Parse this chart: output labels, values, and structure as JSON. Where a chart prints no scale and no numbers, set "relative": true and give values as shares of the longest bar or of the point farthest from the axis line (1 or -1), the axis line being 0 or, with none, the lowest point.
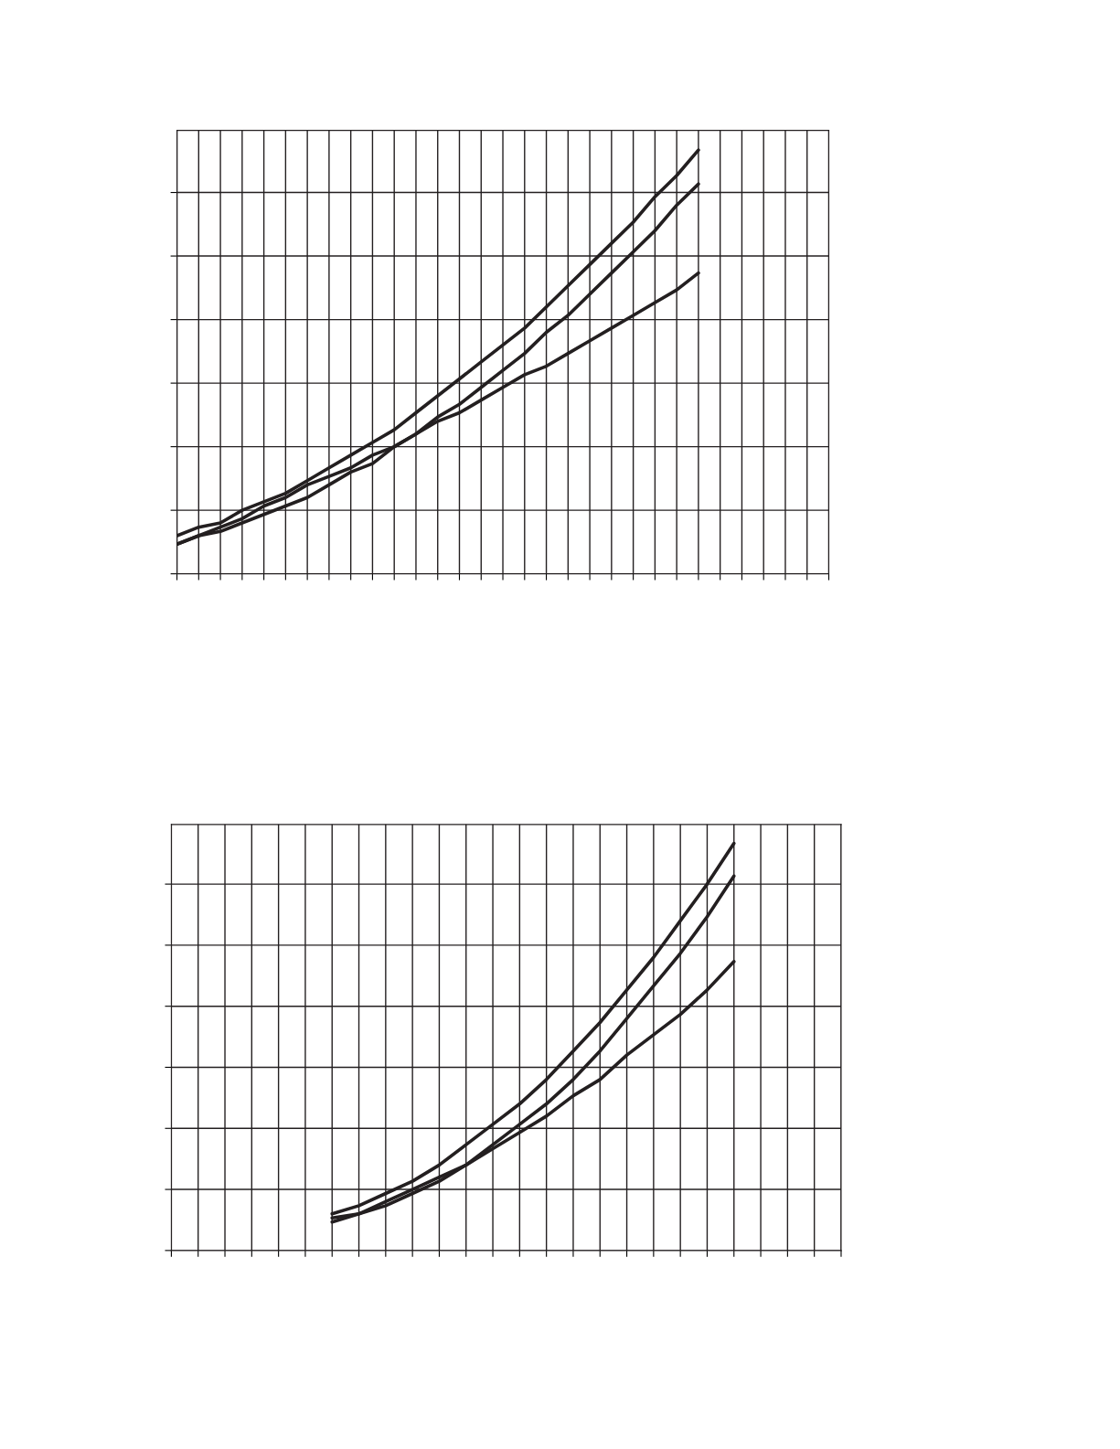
{
  "chart_data": [
    {
      "type": "line",
      "relative": true,
      "grid": true,
      "categories": [
        null,
        null,
        null,
        null,
        null,
        null,
        null,
        null,
        null,
        null,
        null,
        null,
        null,
        null,
        null,
        null,
        null,
        null,
        null,
        null,
        null,
        null,
        null,
        null,
        null,
        null,
        null,
        null,
        null,
        null,
        null
      ],
      "series": [
        {
          "color": "#231f20",
          "values": [
            0.09,
            0.11,
            0.12,
            0.15,
            0.17,
            0.19,
            0.22,
            0.25,
            0.28,
            0.31,
            0.34,
            0.38,
            0.42,
            0.46,
            0.5,
            0.54,
            0.58,
            0.63,
            0.68,
            0.73,
            0.78,
            0.83,
            0.89,
            0.94,
            1,
            null,
            null,
            null,
            null,
            null,
            null
          ]
        },
        {
          "color": "#231f20",
          "values": [
            0.07,
            0.09,
            0.1,
            0.12,
            0.14,
            0.16,
            0.18,
            0.21,
            0.24,
            0.26,
            0.3,
            0.33,
            0.37,
            0.4,
            0.44,
            0.48,
            0.52,
            0.57,
            0.61,
            0.66,
            0.71,
            0.76,
            0.81,
            0.87,
            0.92,
            null,
            null,
            null,
            null,
            null,
            null
          ]
        },
        {
          "color": "#231f20",
          "values": [
            0.07,
            0.09,
            0.11,
            0.13,
            0.16,
            0.18,
            0.21,
            0.23,
            0.25,
            0.28,
            0.3,
            0.33,
            0.36,
            0.38,
            0.41,
            0.44,
            0.47,
            0.49,
            0.52,
            0.55,
            0.58,
            0.61,
            0.64,
            0.67,
            0.71,
            null,
            null,
            null,
            null,
            null,
            null
          ]
        }
      ]
    },
    {
      "type": "line",
      "relative": true,
      "grid": true,
      "categories": [
        null,
        null,
        null,
        null,
        null,
        null,
        null,
        null,
        null,
        null,
        null,
        null,
        null,
        null,
        null,
        null,
        null,
        null,
        null,
        null,
        null,
        null,
        null,
        null,
        null,
        null
      ],
      "series": [
        {
          "color": "#231f20",
          "values": [
            null,
            null,
            null,
            null,
            null,
            null,
            0.09,
            0.11,
            0.14,
            0.17,
            0.21,
            0.26,
            0.31,
            0.36,
            0.42,
            0.49,
            0.56,
            0.64,
            0.72,
            0.81,
            0.9,
            1,
            null,
            null,
            null,
            null
          ]
        },
        {
          "color": "#231f20",
          "values": [
            null,
            null,
            null,
            null,
            null,
            null,
            0.08,
            0.09,
            0.11,
            0.14,
            0.17,
            0.21,
            0.26,
            0.31,
            0.36,
            0.42,
            0.49,
            0.57,
            0.65,
            0.73,
            0.82,
            0.92,
            null,
            null,
            null,
            null
          ]
        },
        {
          "color": "#231f20",
          "values": [
            null,
            null,
            null,
            null,
            null,
            null,
            0.07,
            0.09,
            0.12,
            0.15,
            0.18,
            0.21,
            0.25,
            0.29,
            0.33,
            0.38,
            0.42,
            0.48,
            0.53,
            0.58,
            0.64,
            0.71,
            null,
            null,
            null,
            null
          ]
        }
      ]
    }
  ]
}
